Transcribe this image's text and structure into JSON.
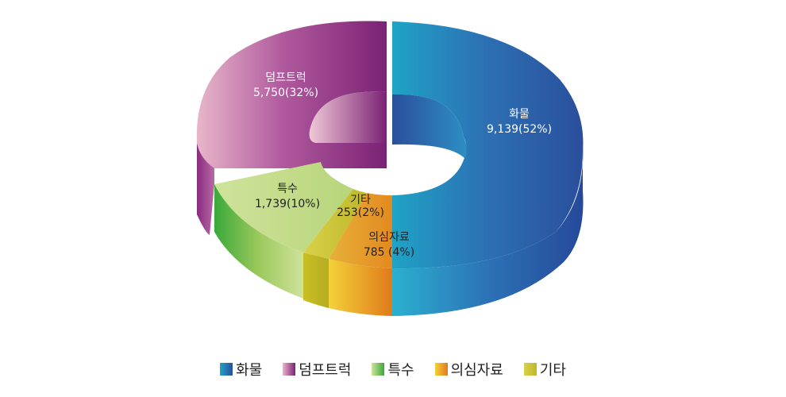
{
  "chart_data": {
    "type": "pie",
    "variant": "3d-donut",
    "title": "",
    "categories": [
      "화물",
      "덤프트럭",
      "특수",
      "의심자료",
      "기타"
    ],
    "values": [
      9139,
      5750,
      1739,
      785,
      253
    ],
    "percents": [
      52,
      32,
      10,
      4,
      2
    ],
    "labels": [
      {
        "name": "화물",
        "value_text": "9,139(52%)"
      },
      {
        "name": "덤프트럭",
        "value_text": "5,750(32%)"
      },
      {
        "name": "특수",
        "value_text": "1,739(10%)"
      },
      {
        "name": "의심자료",
        "value_text": "785 (4%)"
      },
      {
        "name": "기타",
        "value_text": "253(2%)"
      }
    ],
    "colors": [
      "#2b5aa6",
      "#8a2a80",
      "#9cc95c",
      "#e39a2a",
      "#c9c22a"
    ],
    "legend_position": "bottom"
  }
}
